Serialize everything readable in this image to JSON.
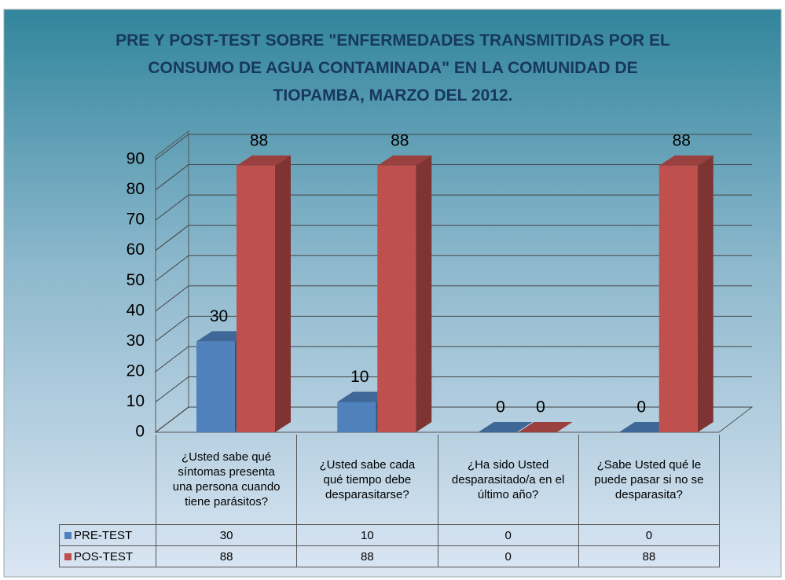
{
  "chart_data": {
    "type": "bar3d",
    "title": "PRE Y POST-TEST SOBRE \"ENFERMEDADES TRANSMITIDAS POR EL CONSUMO DE AGUA CONTAMINADA\" EN LA COMUNIDAD DE TIOPAMBA, MARZO DEL 2012.",
    "categories": [
      "¿Usted sabe qué síntomas presenta una persona cuando tiene parásitos?",
      "¿Usted sabe cada qué tiempo debe desparasitarse?",
      "¿Ha sido Usted desparasitado/a en el último año?",
      "¿Sabe Usted qué le puede pasar si no se desparasita?"
    ],
    "series": [
      {
        "name": "PRE-TEST",
        "color": "#4f81bd",
        "values": [
          30,
          10,
          0,
          0
        ]
      },
      {
        "name": "POS-TEST",
        "color": "#c0504d",
        "values": [
          88,
          88,
          0,
          88
        ]
      }
    ],
    "ylim": [
      0,
      90
    ],
    "yticks": [
      0,
      10,
      20,
      30,
      40,
      50,
      60,
      70,
      80,
      90
    ],
    "grid": true,
    "data_table": true
  }
}
